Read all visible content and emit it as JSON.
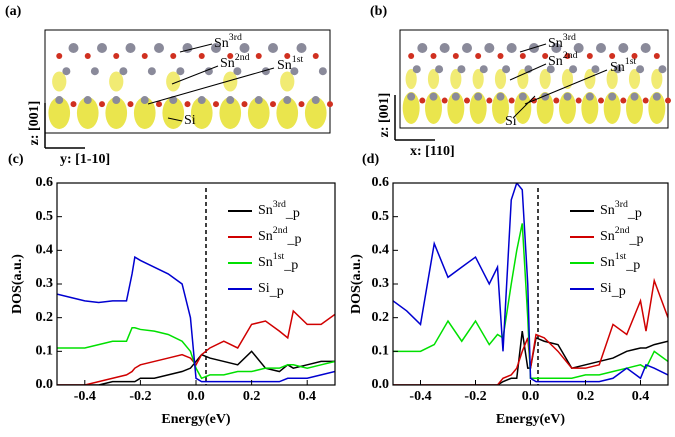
{
  "structures": [
    {
      "panel": "(a)",
      "labels": [
        "Sn3rd",
        "Sn2nd",
        "Sn1st",
        "Si"
      ],
      "axes": [
        "z: [001]",
        "y: [1-10]"
      ]
    },
    {
      "panel": "(b)",
      "labels": [
        "Sn3rd",
        "Sn2nd",
        "Sn1st",
        "Si"
      ],
      "axes": [
        "z: [001]",
        "x: [110]"
      ]
    }
  ],
  "chart_data": [
    {
      "type": "line",
      "label": "(c)",
      "xlabel": "Energy(eV)",
      "ylabel": "DOS(a.u.)",
      "xlim": [
        -0.5,
        0.5
      ],
      "xticks": [
        -0.4,
        -0.2,
        {
          "value": 0,
          "label": "0.0"
        },
        0.2,
        0.4
      ],
      "ylim": [
        0,
        0.6
      ],
      "yticks": [
        {
          "value": 0,
          "label": "0.0"
        },
        0.1,
        0.2,
        0.3,
        0.4,
        0.5,
        0.6
      ],
      "x": [
        -0.5,
        -0.45,
        -0.4,
        -0.35,
        -0.3,
        -0.25,
        -0.23,
        -0.22,
        -0.2,
        -0.15,
        -0.1,
        -0.05,
        -0.02,
        0,
        0.02,
        0.05,
        0.1,
        0.15,
        0.2,
        0.25,
        0.3,
        0.33,
        0.35,
        0.4,
        0.45,
        0.5
      ],
      "series": [
        {
          "name": "Sn3rd_p",
          "color": "#000000",
          "values": [
            0,
            0,
            0,
            0,
            0.01,
            0.01,
            0.01,
            0.01,
            0.02,
            0.02,
            0.03,
            0.04,
            0.05,
            0.07,
            0.09,
            0.08,
            0.07,
            0.06,
            0.1,
            0.05,
            0.04,
            0.06,
            0.05,
            0.06,
            0.07,
            0.07
          ]
        },
        {
          "name": "Sn2nd_p",
          "color": "#d00000",
          "values": [
            0,
            0,
            0,
            0.01,
            0.02,
            0.03,
            0.04,
            0.05,
            0.06,
            0.07,
            0.08,
            0.09,
            0.08,
            0.06,
            0.09,
            0.11,
            0.13,
            0.11,
            0.18,
            0.19,
            0.16,
            0.14,
            0.22,
            0.18,
            0.18,
            0.21
          ]
        },
        {
          "name": "Sn1st_p",
          "color": "#00e000",
          "values": [
            0.11,
            0.11,
            0.11,
            0.12,
            0.13,
            0.13,
            0.17,
            0.17,
            0.165,
            0.16,
            0.15,
            0.13,
            0.1,
            0.05,
            0.02,
            0.03,
            0.03,
            0.04,
            0.04,
            0.05,
            0.05,
            0.06,
            0.06,
            0.05,
            0.06,
            0.07
          ]
        },
        {
          "name": "Si_p",
          "color": "#0000d0",
          "values": [
            0.27,
            0.26,
            0.25,
            0.245,
            0.25,
            0.25,
            0.33,
            0.38,
            0.37,
            0.35,
            0.33,
            0.3,
            0.2,
            0.02,
            0.01,
            0.01,
            0.01,
            0.01,
            0.01,
            0.01,
            0.01,
            0.02,
            0.02,
            0.02,
            0.03,
            0.04
          ]
        }
      ]
    },
    {
      "type": "line",
      "label": "(d)",
      "xlabel": "Energy(eV)",
      "ylabel": "DOS(a.u.)",
      "xlim": [
        -0.5,
        0.5
      ],
      "xticks": [
        -0.4,
        -0.2,
        {
          "value": 0,
          "label": "0.0"
        },
        0.2,
        0.4
      ],
      "ylim": [
        0,
        0.6
      ],
      "yticks": [
        {
          "value": 0,
          "label": "0.0"
        },
        0.1,
        0.2,
        0.3,
        0.4,
        0.5,
        0.6
      ],
      "x": [
        -0.5,
        -0.45,
        -0.4,
        -0.35,
        -0.3,
        -0.25,
        -0.2,
        -0.15,
        -0.12,
        -0.1,
        -0.07,
        -0.05,
        -0.03,
        -0.01,
        0,
        0.02,
        0.05,
        0.1,
        0.15,
        0.2,
        0.25,
        0.3,
        0.35,
        0.4,
        0.42,
        0.45,
        0.5
      ],
      "series": [
        {
          "name": "Sn3rd_p",
          "color": "#000000",
          "values": [
            0,
            0,
            0,
            0,
            0,
            0,
            0,
            0,
            0,
            0.01,
            0.02,
            0.02,
            0.16,
            0.05,
            0.05,
            0.14,
            0.13,
            0.12,
            0.05,
            0.06,
            0.07,
            0.08,
            0.1,
            0.11,
            0.11,
            0.12,
            0.13
          ]
        },
        {
          "name": "Sn2nd_p",
          "color": "#d00000",
          "values": [
            0,
            0,
            0,
            0,
            0,
            0,
            0,
            0,
            0,
            0.02,
            0.03,
            0.05,
            0.1,
            0.14,
            0.05,
            0.15,
            0.14,
            0.1,
            0.05,
            0.05,
            0.06,
            0.18,
            0.15,
            0.25,
            0.16,
            0.31,
            0.2
          ]
        },
        {
          "name": "Sn1st_p",
          "color": "#00e000",
          "values": [
            0.1,
            0.1,
            0.1,
            0.12,
            0.19,
            0.13,
            0.19,
            0.12,
            0.15,
            0.14,
            0.3,
            0.4,
            0.48,
            0.2,
            0.02,
            0.02,
            0.02,
            0.02,
            0.02,
            0.03,
            0.03,
            0.04,
            0.05,
            0.06,
            0.05,
            0.1,
            0.07
          ]
        },
        {
          "name": "Si_p",
          "color": "#0000d0",
          "values": [
            0.25,
            0.22,
            0.18,
            0.42,
            0.32,
            0.35,
            0.38,
            0.3,
            0.35,
            0.1,
            0.55,
            0.6,
            0.58,
            0.3,
            0.02,
            0.01,
            0.01,
            0.01,
            0.01,
            0.01,
            0.01,
            0.02,
            0.05,
            0.02,
            0.06,
            0.05,
            0.03
          ]
        }
      ]
    }
  ]
}
